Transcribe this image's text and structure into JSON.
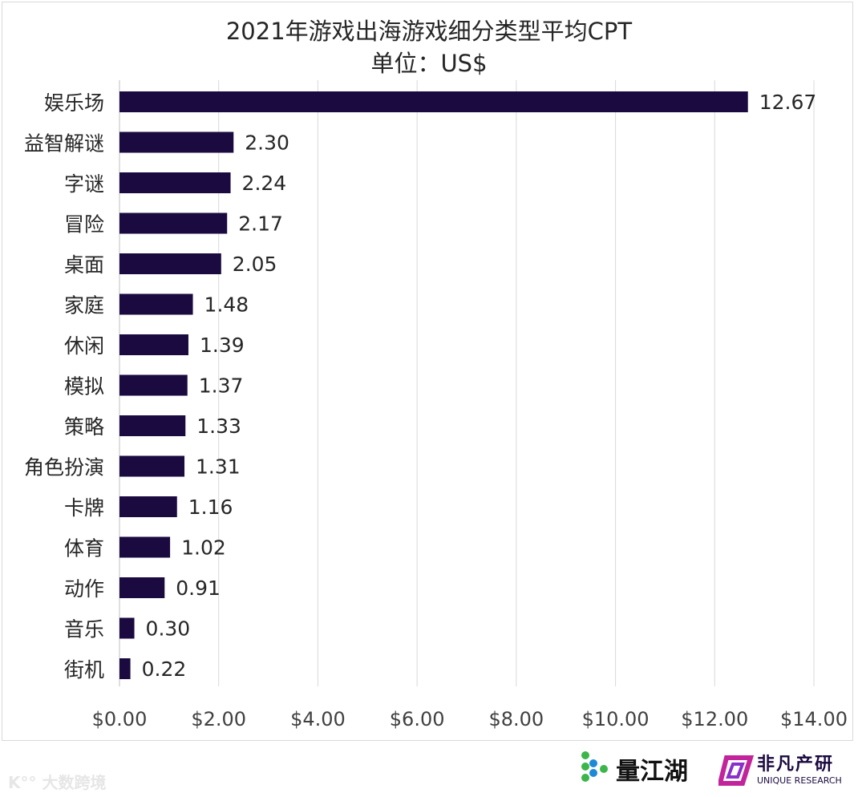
{
  "chart_data": {
    "type": "bar",
    "orientation": "horizontal",
    "title": "2021年游戏出海游戏细分类型平均CPT",
    "subtitle": "单位：US$",
    "categories": [
      "娱乐场",
      "益智解谜",
      "字谜",
      "冒险",
      "桌面",
      "家庭",
      "休闲",
      "模拟",
      "策略",
      "角色扮演",
      "卡牌",
      "体育",
      "动作",
      "音乐",
      "街机"
    ],
    "values": [
      12.67,
      2.3,
      2.24,
      2.17,
      2.05,
      1.48,
      1.39,
      1.37,
      1.33,
      1.31,
      1.16,
      1.02,
      0.91,
      0.3,
      0.22
    ],
    "data_labels": [
      "12.67",
      "2.30",
      "2.24",
      "2.17",
      "2.05",
      "1.48",
      "1.39",
      "1.37",
      "1.33",
      "1.31",
      "1.16",
      "1.02",
      "0.91",
      "0.30",
      "0.22"
    ],
    "xlim": [
      0,
      14
    ],
    "x_ticks": [
      "$0.00",
      "$2.00",
      "$4.00",
      "$6.00",
      "$8.00",
      "$10.00",
      "$12.00",
      "$14.00"
    ],
    "grid": "vertical",
    "bar_color": "#1b0a40",
    "legend": "none"
  },
  "logos": {
    "watermark": "大数跨境",
    "logo1": "量江湖",
    "logo2_cn": "非凡产研",
    "logo2_en": "UNIQUE RESEARCH"
  }
}
